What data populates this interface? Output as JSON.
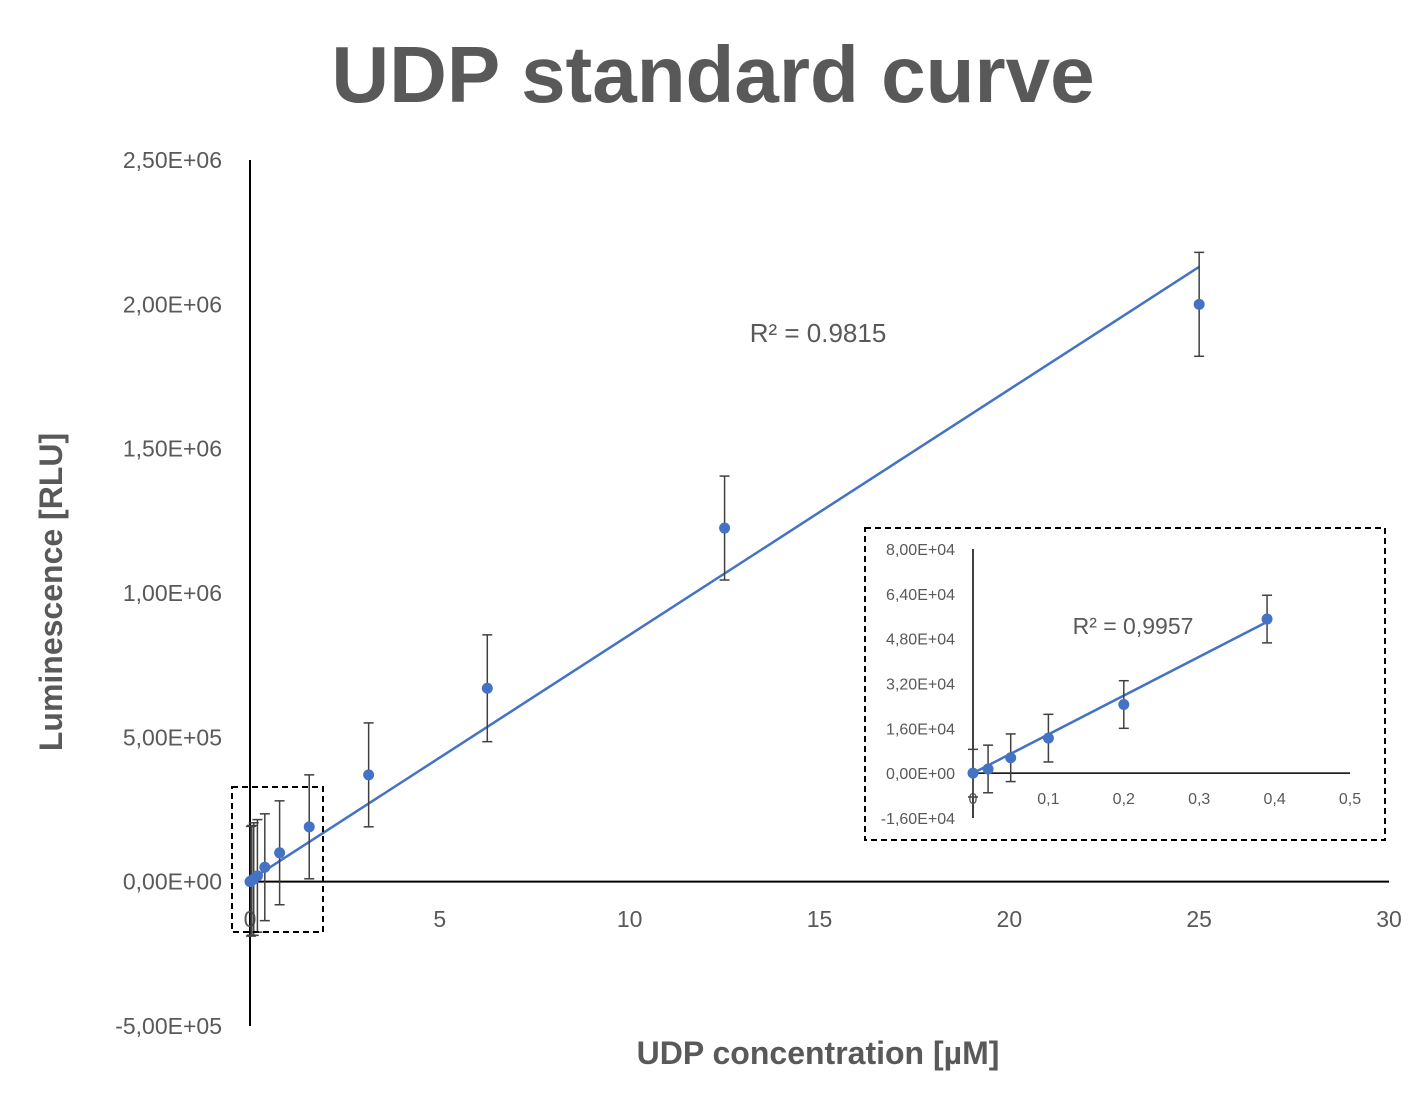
{
  "chart_data": [
    {
      "type": "scatter",
      "title": "UDP standard curve",
      "xlabel": "UDP concentration [µM]",
      "ylabel": "Luminescence [RLU]",
      "xlim": [
        0,
        30
      ],
      "ylim": [
        -500000,
        2500000
      ],
      "x_ticks": [
        "0",
        "5",
        "10",
        "15",
        "20",
        "25",
        "30"
      ],
      "y_ticks": [
        "-5,00E+05",
        "0,00E+00",
        "5,00E+05",
        "1,00E+06",
        "1,50E+06",
        "2,00E+06",
        "2,50E+06"
      ],
      "grid": false,
      "color": "#4472C4",
      "series": [
        {
          "points": [
            {
              "x": 0,
              "y": 0,
              "err": 5000
            },
            {
              "x": 0.0244,
              "y": 1500,
              "err": 190000
            },
            {
              "x": 0.0488,
              "y": 4500,
              "err": 190000
            },
            {
              "x": 0.0977,
              "y": 9000,
              "err": 195000
            },
            {
              "x": 0.195,
              "y": 20000,
              "err": 195000
            },
            {
              "x": 0.39,
              "y": 50000,
              "err": 185000
            },
            {
              "x": 0.78,
              "y": 100000,
              "err": 180000
            },
            {
              "x": 1.56,
              "y": 190000,
              "err": 180000
            },
            {
              "x": 3.125,
              "y": 370000,
              "err": 180000
            },
            {
              "x": 6.25,
              "y": 670000,
              "err": 185000
            },
            {
              "x": 12.5,
              "y": 1225000,
              "err": 180000
            },
            {
              "x": 25,
              "y": 2000000,
              "err": 180000
            }
          ]
        }
      ],
      "trendline": {
        "x0": 0,
        "y0": 5000,
        "x1": 25,
        "y1": 2130000
      },
      "annotation": "R² = 0.9815"
    },
    {
      "type": "scatter",
      "title": "",
      "xlabel": "",
      "ylabel": "",
      "xlim": [
        0,
        0.5
      ],
      "ylim": [
        -16000,
        80000
      ],
      "x_ticks": [
        "0",
        "0,1",
        "0,2",
        "0,3",
        "0,4",
        "0,5"
      ],
      "y_ticks": [
        "-1,60E+04",
        "0,00E+00",
        "1,60E+04",
        "3,20E+04",
        "4,80E+04",
        "6,40E+04",
        "8,00E+04"
      ],
      "grid": false,
      "color": "#4472C4",
      "series": [
        {
          "points": [
            {
              "x": 0,
              "y": 0,
              "err": 8500
            },
            {
              "x": 0.02,
              "y": 1500,
              "err": 8500
            },
            {
              "x": 0.05,
              "y": 5500,
              "err": 8500
            },
            {
              "x": 0.1,
              "y": 12500,
              "err": 8500
            },
            {
              "x": 0.2,
              "y": 24500,
              "err": 8500
            },
            {
              "x": 0.39,
              "y": 55000,
              "err": 8500
            }
          ]
        }
      ],
      "trendline": {
        "x0": 0,
        "y0": 0,
        "x1": 0.39,
        "y1": 54000
      },
      "annotation": "R² = 0,9957"
    }
  ]
}
